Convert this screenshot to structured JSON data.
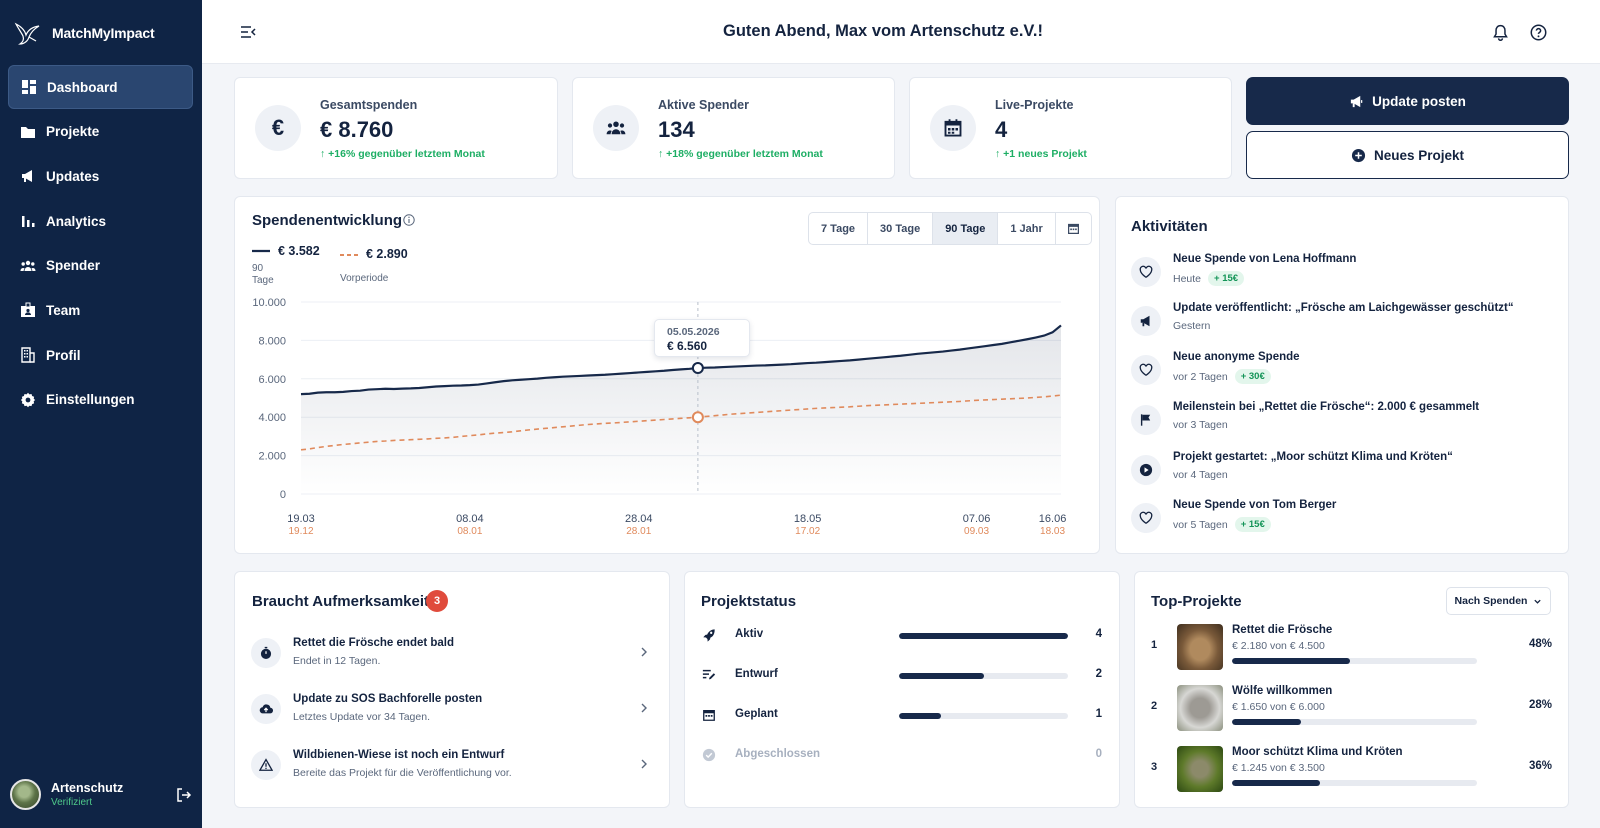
{
  "app": {
    "brand": "MatchMyImpact"
  },
  "sidebar": {
    "items": [
      {
        "label": "Dashboard",
        "icon": "dashboard-icon",
        "active": true
      },
      {
        "label": "Projekte",
        "icon": "folder-icon"
      },
      {
        "label": "Updates",
        "icon": "megaphone-icon"
      },
      {
        "label": "Analytics",
        "icon": "bar-chart-icon"
      },
      {
        "label": "Spender",
        "icon": "people-icon"
      },
      {
        "label": "Team",
        "icon": "badge-icon"
      },
      {
        "label": "Profil",
        "icon": "building-icon"
      },
      {
        "label": "Einstellungen",
        "icon": "gear-icon"
      }
    ],
    "user": {
      "name": "Artenschutz",
      "status": "Verifiziert"
    }
  },
  "header": {
    "greeting": "Guten Abend, Max vom Artenschutz e.V.!"
  },
  "kpis": [
    {
      "label": "Gesamtspenden",
      "value": "€ 8.760",
      "trend": "+16% gegenüber letztem Monat",
      "icon": "euro-icon",
      "icon_text": "€"
    },
    {
      "label": "Aktive Spender",
      "value": "134",
      "trend": "+18% gegenüber letztem Monat",
      "icon": "people-icon"
    },
    {
      "label": "Live-Projekte",
      "value": "4",
      "trend": "+1 neues Projekt",
      "icon": "calendar-icon"
    }
  ],
  "actions": {
    "update": "Update posten",
    "new_project": "Neues Projekt"
  },
  "chart_card": {
    "title": "Spendenentwicklung",
    "ranges": [
      "7 Tage",
      "30 Tage",
      "90 Tage",
      "1 Jahr"
    ],
    "active_range": "90 Tage",
    "legend_current_value": "€ 3.582",
    "legend_current_label": "90",
    "legend_current_label2": "Tage",
    "legend_prev_value": "€ 2.890",
    "legend_prev_label": "Vorperiode",
    "tooltip_date": "05.05.2026",
    "tooltip_value": "€ 6.560"
  },
  "chart_data": {
    "type": "line",
    "yticks": [
      "10.000",
      "8.000",
      "6.000",
      "4.000",
      "2.000",
      "0"
    ],
    "ylim": [
      0,
      10000
    ],
    "xticks": [
      "19.03",
      "08.04",
      "28.04",
      "18.05",
      "07.06",
      "16.06"
    ],
    "xticks_prev": [
      "19.12",
      "08.01",
      "28.01",
      "17.02",
      "09.03",
      "18.03"
    ],
    "x_tick_pos": [
      0,
      20,
      40,
      60,
      80,
      89
    ],
    "hover_index": 47,
    "series": [
      {
        "values": [
          5200,
          5220,
          5280,
          5300,
          5300,
          5320,
          5360,
          5380,
          5440,
          5460,
          5480,
          5470,
          5490,
          5500,
          5520,
          5560,
          5600,
          5620,
          5640,
          5650,
          5670,
          5700,
          5760,
          5820,
          5880,
          5920,
          5950,
          5980,
          6010,
          6050,
          6080,
          6110,
          6130,
          6150,
          6170,
          6190,
          6210,
          6240,
          6270,
          6300,
          6330,
          6360,
          6390,
          6420,
          6460,
          6490,
          6520,
          6560,
          6580,
          6590,
          6610,
          6630,
          6650,
          6670,
          6690,
          6700,
          6720,
          6740,
          6760,
          6790,
          6820,
          6840,
          6870,
          6900,
          6930,
          6960,
          7000,
          7040,
          7080,
          7120,
          7160,
          7200,
          7250,
          7300,
          7340,
          7380,
          7420,
          7470,
          7520,
          7580,
          7640,
          7700,
          7760,
          7820,
          7900,
          7980,
          8060,
          8150,
          8250,
          8420,
          8780
        ]
      },
      {
        "values": [
          2300,
          2350,
          2420,
          2480,
          2530,
          2580,
          2620,
          2660,
          2700,
          2740,
          2760,
          2790,
          2810,
          2830,
          2850,
          2870,
          2900,
          2920,
          2950,
          3000,
          3040,
          3080,
          3130,
          3170,
          3200,
          3240,
          3290,
          3340,
          3380,
          3420,
          3460,
          3500,
          3540,
          3580,
          3620,
          3650,
          3680,
          3700,
          3730,
          3760,
          3790,
          3820,
          3850,
          3880,
          3910,
          3940,
          3970,
          4000,
          4040,
          4080,
          4120,
          4160,
          4190,
          4220,
          4250,
          4280,
          4310,
          4340,
          4370,
          4400,
          4430,
          4460,
          4480,
          4500,
          4520,
          4540,
          4570,
          4600,
          4620,
          4640,
          4660,
          4680,
          4700,
          4720,
          4740,
          4760,
          4780,
          4800,
          4820,
          4850,
          4880,
          4900,
          4920,
          4940,
          4960,
          4980,
          5000,
          5030,
          5060,
          5100,
          5150
        ]
      }
    ]
  },
  "activities": {
    "title": "Aktivitäten",
    "items": [
      {
        "title": "Neue Spende von Lena Hoffmann",
        "time": "Heute",
        "pill": "+ 15€",
        "icon": "heart-icon"
      },
      {
        "title": "Update veröffentlicht: „Frösche am Laichgewässer geschützt“",
        "time": "Gestern",
        "pill": "",
        "icon": "megaphone-icon"
      },
      {
        "title": "Neue anonyme Spende",
        "time": "vor 2 Tagen",
        "pill": "+ 30€",
        "icon": "heart-icon"
      },
      {
        "title": "Meilenstein bei „Rettet die Frösche“: 2.000 € gesammelt",
        "time": "vor 3 Tagen",
        "pill": "",
        "icon": "flag-icon"
      },
      {
        "title": "Projekt gestartet: „Moor schützt Klima und Kröten“",
        "time": "vor 4 Tagen",
        "pill": "",
        "icon": "play-icon"
      },
      {
        "title": "Neue Spende von Tom Berger",
        "time": "vor 5 Tagen",
        "pill": "+ 15€",
        "icon": "heart-icon"
      }
    ]
  },
  "attention": {
    "title": "Braucht Aufmerksamkeit",
    "count": "3",
    "items": [
      {
        "title": "Rettet die Frösche endet bald",
        "sub": "Endet in 12 Tagen.",
        "icon": "stopwatch-icon"
      },
      {
        "title": "Update zu SOS Bachforelle posten",
        "sub": "Letztes Update vor 34 Tagen.",
        "icon": "cloud-upload-icon"
      },
      {
        "title": "Wildbienen-Wiese ist noch ein Entwurf",
        "sub": "Bereite das Projekt für die Veröffentlichung vor.",
        "icon": "warning-icon"
      }
    ]
  },
  "status": {
    "title": "Projektstatus",
    "items": [
      {
        "label": "Aktiv",
        "count": "4",
        "fraction": 1.0,
        "icon": "rocket-icon"
      },
      {
        "label": "Entwurf",
        "count": "2",
        "fraction": 0.5,
        "icon": "edit-list-icon"
      },
      {
        "label": "Geplant",
        "count": "1",
        "fraction": 0.25,
        "icon": "calendar-icon"
      },
      {
        "label": "Abgeschlossen",
        "count": "0",
        "fraction": 0,
        "icon": "check-circle-icon",
        "muted": true
      }
    ]
  },
  "top_projects": {
    "title": "Top-Projekte",
    "sort_label": "Nach Spenden",
    "items": [
      {
        "rank": "1",
        "name": "Rettet die Frösche",
        "sub": "€ 2.180 von € 4.500",
        "pct": "48%",
        "fraction": 0.48,
        "image": "frog-photo"
      },
      {
        "rank": "2",
        "name": "Wölfe willkommen",
        "sub": "€ 1.650 von € 6.000",
        "pct": "28%",
        "fraction": 0.28,
        "image": "wolf-photo"
      },
      {
        "rank": "3",
        "name": "Moor schützt Klima und Kröten",
        "sub": "€ 1.245 von € 3.500",
        "pct": "36%",
        "fraction": 0.36,
        "image": "toad-photo"
      }
    ]
  },
  "colors": {
    "navy": "#17294a",
    "sidebar": "#0f2445",
    "accent_orange": "#e08a5c",
    "success": "#1dae64",
    "danger": "#e04b3c"
  }
}
